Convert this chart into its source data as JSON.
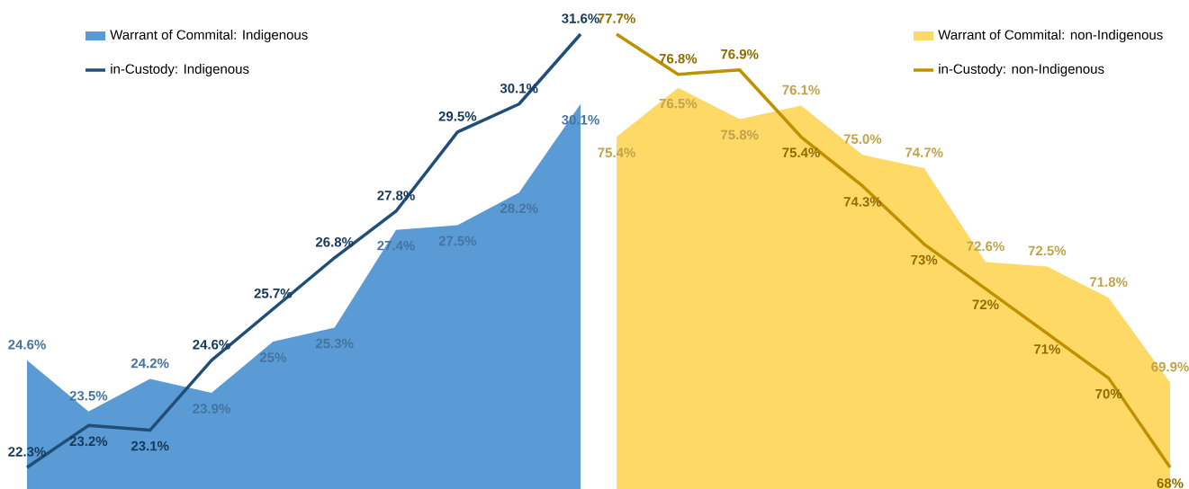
{
  "chart_data": [
    {
      "type": "area",
      "categories": [
        null,
        null,
        null,
        null,
        null,
        null,
        null,
        null,
        null,
        null
      ],
      "tick_labels": false,
      "legend": "top left",
      "series": [
        {
          "name": "Warrant of Commital: Indigenous",
          "color": "#5b9bd5",
          "values": [
            24.6,
            23.5,
            24.2,
            23.9,
            25,
            25.3,
            27.4,
            27.5,
            28.2,
            30.1
          ],
          "value_labels": [
            "24.6%",
            "23.5%",
            "24.2%",
            "23.9%",
            "25%",
            "25.3%",
            "27.4%",
            "27.5%",
            "28.2%",
            "30.1%"
          ]
        },
        {
          "type": "line",
          "name": "in-Custody: Indigenous",
          "color": "#1f4e79",
          "values": [
            22.3,
            23.2,
            23.1,
            24.6,
            25.7,
            26.8,
            27.8,
            29.5,
            30.1,
            31.6
          ],
          "value_labels": [
            "22.3%",
            "23.2%",
            "23.1%",
            "24.6%",
            "25.7%",
            "26.8%",
            "27.8%",
            "29.5%",
            "30.1%",
            "31.6%"
          ]
        }
      ]
    },
    {
      "type": "area",
      "categories": [
        null,
        null,
        null,
        null,
        null,
        null,
        null,
        null,
        null,
        null
      ],
      "tick_labels": false,
      "legend": "top right",
      "series": [
        {
          "name": "Warrant of Commital: non-Indigenous",
          "color": "#ffd966",
          "values": [
            75.4,
            76.5,
            75.8,
            76.1,
            75.0,
            74.7,
            72.6,
            72.5,
            71.8,
            69.9
          ],
          "value_labels": [
            "75.4%",
            "76.5%",
            "75.8%",
            "76.1%",
            "75.0%",
            "74.7%",
            "72.6%",
            "72.5%",
            "71.8%",
            "69.9%"
          ]
        },
        {
          "type": "line",
          "name": "in-Custody: non-Indigenous",
          "color": "#bf9000",
          "values": [
            77.7,
            76.8,
            76.9,
            75.4,
            74.3,
            73,
            72,
            71,
            70,
            68
          ],
          "value_labels": [
            "77.7%",
            "76.8%",
            "76.9%",
            "75.4%",
            "74.3%",
            "73%",
            "72%",
            "71%",
            "70%",
            "68%"
          ]
        }
      ]
    }
  ]
}
